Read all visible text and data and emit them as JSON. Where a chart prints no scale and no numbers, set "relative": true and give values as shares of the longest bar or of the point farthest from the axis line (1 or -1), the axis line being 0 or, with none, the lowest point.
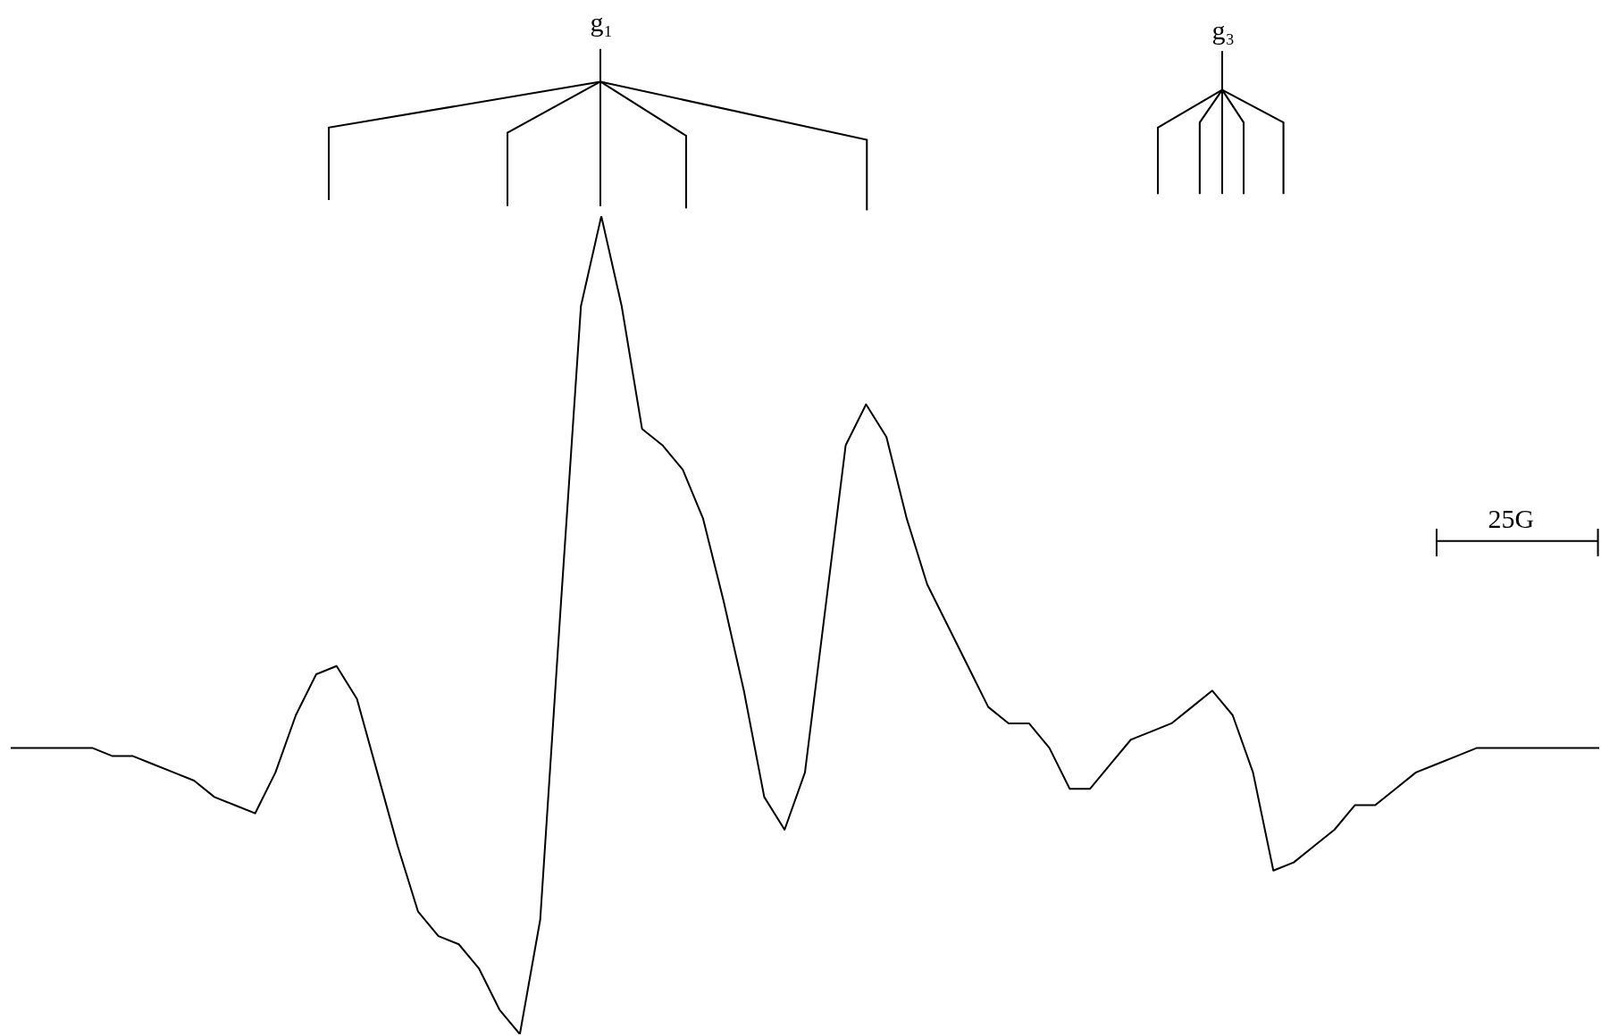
{
  "chart_data": {
    "type": "line",
    "relative": true,
    "color": "#000000",
    "marker": "none",
    "line_style": "solid",
    "legend": false,
    "categories": [
      null,
      null,
      null,
      null,
      null,
      null,
      null,
      null,
      null,
      null,
      null,
      null,
      null,
      null,
      null,
      null,
      null,
      null,
      null,
      null,
      null,
      null,
      null,
      null,
      null,
      null,
      null,
      null,
      null,
      null,
      null,
      null,
      null,
      null,
      null,
      null,
      null,
      null,
      null,
      null,
      null,
      null,
      null,
      null,
      null,
      null,
      null,
      null,
      null,
      null,
      null,
      null,
      null,
      null,
      null,
      null,
      null,
      null,
      null,
      null,
      null,
      null,
      null,
      null,
      null,
      null,
      null,
      null,
      null,
      null,
      null,
      null,
      null,
      null,
      null,
      null,
      null,
      null,
      null
    ],
    "values": [
      0.35,
      0.35,
      0.35,
      0.35,
      0.35,
      0.34,
      0.34,
      0.33,
      0.32,
      0.31,
      0.29,
      0.28,
      0.27,
      0.32,
      0.39,
      0.44,
      0.45,
      0.41,
      0.32,
      0.23,
      0.15,
      0.12,
      0.11,
      0.08,
      0.03,
      0,
      0.14,
      0.52,
      0.89,
      1,
      0.89,
      0.74,
      0.72,
      0.69,
      0.63,
      0.53,
      0.42,
      0.29,
      0.25,
      0.32,
      0.52,
      0.72,
      0.77,
      0.73,
      0.63,
      0.55,
      0.5,
      0.45,
      0.4,
      0.38,
      0.38,
      0.35,
      0.3,
      0.3,
      0.33,
      0.36,
      0.37,
      0.38,
      0.4,
      0.42,
      0.39,
      0.32,
      0.2,
      0.21,
      0.23,
      0.25,
      0.28,
      0.28,
      0.3,
      0.32,
      0.33,
      0.34,
      0.35,
      0.35,
      0.35,
      0.35,
      0.35,
      0.35,
      0.35
    ],
    "annotations": [
      "g₁",
      "g₃",
      "25G"
    ]
  }
}
